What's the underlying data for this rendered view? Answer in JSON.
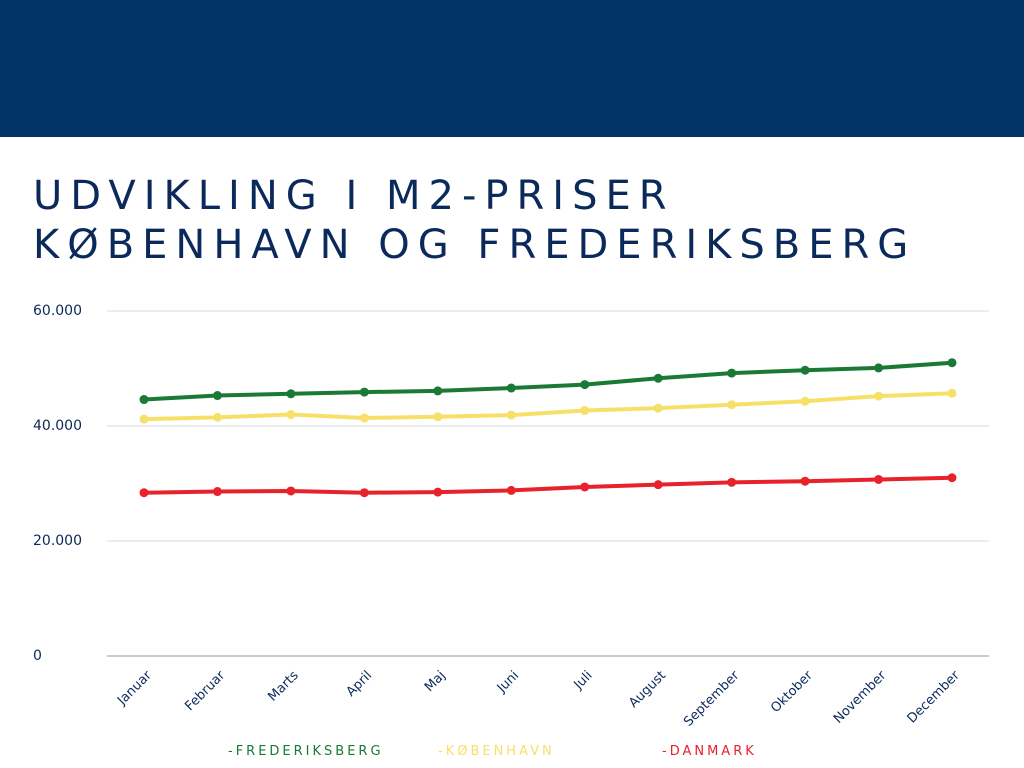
{
  "header": {
    "color": "#003366"
  },
  "title": {
    "line1": "UDVIKLING I M2-PRISER",
    "line2": "KØBENHAVN OG FREDERIKSBERG",
    "color": "#0b2a5b"
  },
  "legend": [
    {
      "label": "-FREDERIKSBERG",
      "color": "#1a7a35"
    },
    {
      "label": "-KØBENHAVN",
      "color": "#f7e06a"
    },
    {
      "label": "-DANMARK",
      "color": "#e8222a"
    }
  ],
  "chart_data": {
    "type": "line",
    "categories": [
      "Januar",
      "Februar",
      "Marts",
      "April",
      "Maj",
      "Juni",
      "Juli",
      "August",
      "September",
      "Oktober",
      "November",
      "December"
    ],
    "ylim": [
      0,
      60000
    ],
    "yticks": [
      0,
      20000,
      40000,
      60000
    ],
    "ytick_labels": [
      "0",
      "20.000",
      "40.000",
      "60.000"
    ],
    "grid": true,
    "legend_position": "bottom",
    "series": [
      {
        "name": "FREDERIKSBERG",
        "color": "#1a7a35",
        "values": [
          44600,
          45300,
          45600,
          45900,
          46100,
          46600,
          47200,
          48300,
          49200,
          49700,
          50100,
          51000
        ]
      },
      {
        "name": "KØBENHAVN",
        "color": "#f7e06a",
        "values": [
          41200,
          41500,
          42000,
          41400,
          41600,
          41900,
          42700,
          43100,
          43700,
          44300,
          45200,
          45700
        ]
      },
      {
        "name": "DANMARK",
        "color": "#e8222a",
        "values": [
          28400,
          28600,
          28700,
          28400,
          28500,
          28800,
          29400,
          29800,
          30200,
          30400,
          30700,
          31000
        ]
      }
    ]
  }
}
